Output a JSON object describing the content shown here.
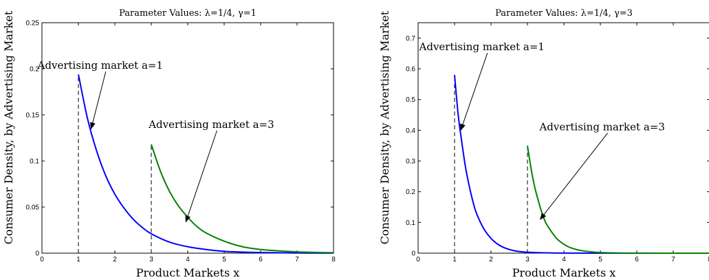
{
  "chart_data": [
    {
      "type": "line",
      "title": "Parameter Values: λ=1/4, γ=1",
      "xlabel": "Product Markets x",
      "ylabel": "Consumer Density, by Advertising Market",
      "xlim": [
        0,
        8
      ],
      "ylim": [
        0,
        0.25
      ],
      "x_ticks": [
        "0",
        "1",
        "2",
        "3",
        "4",
        "5",
        "6",
        "7",
        "8"
      ],
      "y_ticks": [
        "0",
        "0.05",
        "0.1",
        "0.15",
        "0.2",
        "0.25"
      ],
      "grid": false,
      "series": [
        {
          "color": "#0000ff",
          "x": [
            1,
            1.25,
            1.5,
            1.75,
            2,
            2.25,
            2.5,
            2.75,
            3,
            3.5,
            4,
            4.5,
            5,
            5.5,
            6,
            7,
            8
          ],
          "y": [
            0.194,
            0.146,
            0.111,
            0.084,
            0.064,
            0.049,
            0.037,
            0.028,
            0.021,
            0.012,
            0.007,
            0.004,
            0.002,
            0.0012,
            0.0007,
            0.0002,
            0.0001
          ]
        },
        {
          "color": "#008000",
          "x": [
            3,
            3.25,
            3.5,
            3.75,
            4,
            4.25,
            4.5,
            5,
            5.5,
            6,
            6.5,
            7,
            7.5,
            8
          ],
          "y": [
            0.118,
            0.089,
            0.067,
            0.051,
            0.039,
            0.029,
            0.022,
            0.013,
            0.007,
            0.004,
            0.0025,
            0.0014,
            0.0008,
            0.0005
          ]
        }
      ],
      "dashed_markers": [
        {
          "x": 1,
          "y": 0.194
        },
        {
          "x": 3,
          "y": 0.118
        }
      ],
      "annotations": [
        {
          "text": "Advertising market a=1",
          "text_at": [
            1.6,
            0.2
          ],
          "arrow_to": [
            1.35,
            0.135
          ]
        },
        {
          "text": "Advertising market a=3",
          "text_at": [
            4.65,
            0.136
          ],
          "arrow_to": [
            3.95,
            0.034
          ]
        }
      ]
    },
    {
      "type": "line",
      "title": "Parameter Values: λ=1/4, γ=3",
      "xlabel": "Product Markets x",
      "ylabel": "Consumer Density, by Advertising Market",
      "xlim": [
        0,
        8
      ],
      "ylim": [
        0,
        0.75
      ],
      "x_ticks": [
        "0",
        "1",
        "2",
        "3",
        "4",
        "5",
        "6",
        "7",
        "8"
      ],
      "y_ticks": [
        "0",
        "0.1",
        "0.2",
        "0.3",
        "0.4",
        "0.5",
        "0.6",
        "0.7"
      ],
      "grid": false,
      "series": [
        {
          "color": "#0000ff",
          "x": [
            1,
            1.1,
            1.2,
            1.3,
            1.4,
            1.5,
            1.6,
            1.8,
            2,
            2.2,
            2.4,
            2.6,
            2.8,
            3,
            3.5,
            4,
            5,
            8
          ],
          "y": [
            0.58,
            0.45,
            0.36,
            0.28,
            0.22,
            0.17,
            0.13,
            0.08,
            0.048,
            0.028,
            0.016,
            0.009,
            0.005,
            0.003,
            0.001,
            0.0003,
            0,
            0
          ]
        },
        {
          "color": "#008000",
          "x": [
            3,
            3.1,
            3.2,
            3.3,
            3.4,
            3.5,
            3.6,
            3.8,
            4,
            4.2,
            4.5,
            5,
            5.5,
            6,
            7,
            8
          ],
          "y": [
            0.35,
            0.275,
            0.215,
            0.17,
            0.13,
            0.1,
            0.08,
            0.048,
            0.029,
            0.017,
            0.008,
            0.002,
            0.0006,
            0.0002,
            0,
            0
          ]
        }
      ],
      "dashed_markers": [
        {
          "x": 1,
          "y": 0.58
        },
        {
          "x": 3,
          "y": 0.35
        }
      ],
      "annotations": [
        {
          "text": "Advertising market a=1",
          "text_at": [
            1.75,
            0.66
          ],
          "arrow_to": [
            1.17,
            0.4
          ]
        },
        {
          "text": "Advertising market a=3",
          "text_at": [
            5.05,
            0.4
          ],
          "arrow_to": [
            3.35,
            0.11
          ]
        }
      ]
    }
  ]
}
